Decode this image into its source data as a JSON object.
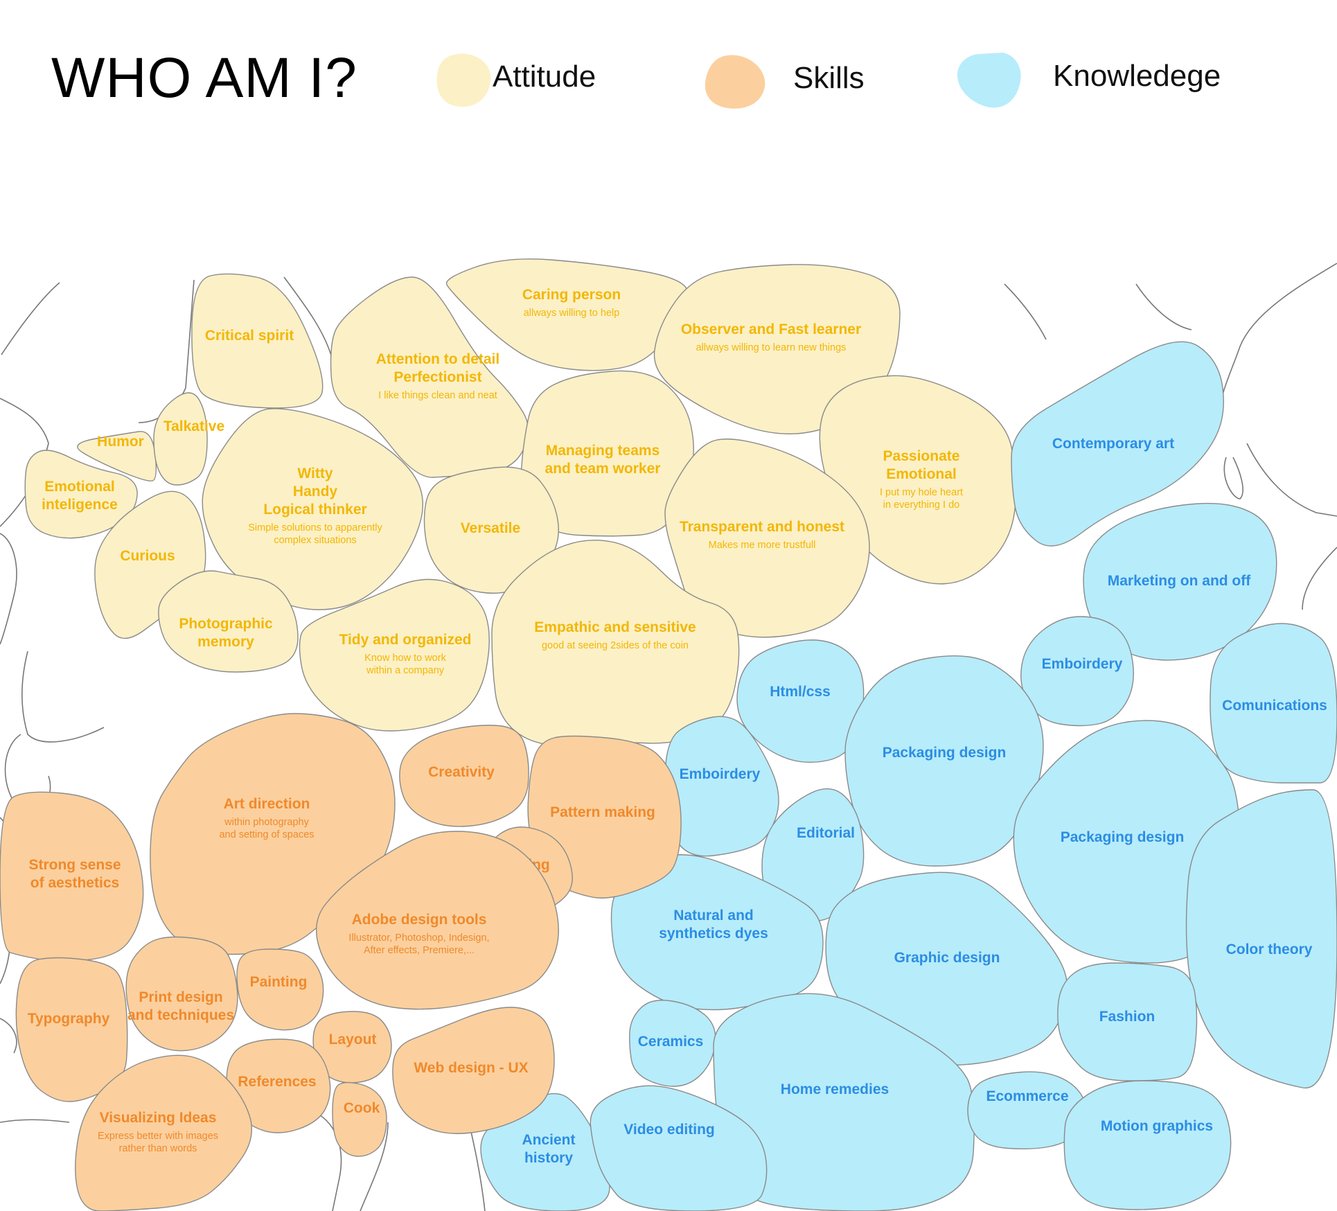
{
  "title": "WHO AM I?",
  "colors": {
    "attitude_fill": "#FCF0C6",
    "attitude_text": "#F2B705",
    "skills_fill": "#FBD09E",
    "skills_text": "#F0892C",
    "knowledge_fill": "#B7ECFB",
    "knowledge_text": "#2C8DE3"
  },
  "legend": [
    {
      "key": "attitude",
      "label": "Attitude"
    },
    {
      "key": "skills",
      "label": "Skills"
    },
    {
      "key": "knowledge",
      "label": "Knowledege"
    }
  ],
  "cells": [
    {
      "group": "attitude",
      "title": [
        "Critical spirit"
      ],
      "sub": []
    },
    {
      "group": "attitude",
      "title": [
        "Caring person"
      ],
      "sub": [
        "allways willing to help"
      ]
    },
    {
      "group": "attitude",
      "title": [
        "Observer and Fast learner"
      ],
      "sub": [
        "allways willing to learn new things"
      ]
    },
    {
      "group": "attitude",
      "title": [
        "Attention to detail",
        "Perfectionist"
      ],
      "sub": [
        "I like things clean and neat"
      ]
    },
    {
      "group": "attitude",
      "title": [
        "Humor"
      ],
      "sub": []
    },
    {
      "group": "attitude",
      "title": [
        "Talkative"
      ],
      "sub": []
    },
    {
      "group": "attitude",
      "title": [
        "Emotional",
        "inteligence"
      ],
      "sub": []
    },
    {
      "group": "attitude",
      "title": [
        "Witty",
        "Handy",
        "Logical thinker"
      ],
      "sub": [
        "Simple solutions to apparently",
        "complex situations"
      ]
    },
    {
      "group": "attitude",
      "title": [
        "Managing teams",
        "and team worker"
      ],
      "sub": []
    },
    {
      "group": "attitude",
      "title": [
        "Passionate",
        "Emotional"
      ],
      "sub": [
        "I put my hole heart",
        "in everything I do"
      ]
    },
    {
      "group": "attitude",
      "title": [
        "Curious"
      ],
      "sub": []
    },
    {
      "group": "attitude",
      "title": [
        "Versatile"
      ],
      "sub": []
    },
    {
      "group": "attitude",
      "title": [
        "Transparent and honest"
      ],
      "sub": [
        "Makes me more trustfull"
      ]
    },
    {
      "group": "attitude",
      "title": [
        "Photographic",
        "memory"
      ],
      "sub": []
    },
    {
      "group": "attitude",
      "title": [
        "Tidy and organized"
      ],
      "sub": [
        "Know how to work",
        "within a company"
      ]
    },
    {
      "group": "attitude",
      "title": [
        "Empathic and sensitive"
      ],
      "sub": [
        "good at seeing 2sides of the coin"
      ]
    },
    {
      "group": "knowledge",
      "title": [
        "Contemporary art"
      ],
      "sub": []
    },
    {
      "group": "knowledge",
      "title": [
        "Marketing on and off"
      ],
      "sub": []
    },
    {
      "group": "knowledge",
      "title": [
        "Emboirdery"
      ],
      "sub": []
    },
    {
      "group": "knowledge",
      "title": [
        "Comunications"
      ],
      "sub": []
    },
    {
      "group": "knowledge",
      "title": [
        "Html/css"
      ],
      "sub": []
    },
    {
      "group": "knowledge",
      "title": [
        "Packaging design"
      ],
      "sub": []
    },
    {
      "group": "knowledge",
      "title": [
        "Emboirdery"
      ],
      "sub": []
    },
    {
      "group": "knowledge",
      "title": [
        "Editorial"
      ],
      "sub": []
    },
    {
      "group": "knowledge",
      "title": [
        "Packaging design"
      ],
      "sub": []
    },
    {
      "group": "knowledge",
      "title": [
        "Natural and",
        "synthetics dyes"
      ],
      "sub": []
    },
    {
      "group": "knowledge",
      "title": [
        "Graphic design"
      ],
      "sub": []
    },
    {
      "group": "knowledge",
      "title": [
        "Color theory"
      ],
      "sub": []
    },
    {
      "group": "knowledge",
      "title": [
        "Fashion"
      ],
      "sub": []
    },
    {
      "group": "knowledge",
      "title": [
        "Ceramics"
      ],
      "sub": []
    },
    {
      "group": "knowledge",
      "title": [
        "Home remedies"
      ],
      "sub": []
    },
    {
      "group": "knowledge",
      "title": [
        "Ecommerce"
      ],
      "sub": []
    },
    {
      "group": "knowledge",
      "title": [
        "Ancient",
        "history"
      ],
      "sub": []
    },
    {
      "group": "knowledge",
      "title": [
        "Video editing"
      ],
      "sub": []
    },
    {
      "group": "knowledge",
      "title": [
        "Motion graphics"
      ],
      "sub": []
    },
    {
      "group": "skills",
      "title": [
        "Creativity"
      ],
      "sub": []
    },
    {
      "group": "skills",
      "title": [
        "Art direction"
      ],
      "sub": [
        "within photography",
        "and setting of spaces"
      ]
    },
    {
      "group": "skills",
      "title": [
        "Pattern making"
      ],
      "sub": []
    },
    {
      "group": "skills",
      "title": [
        "Strong sense",
        "of aesthetics"
      ],
      "sub": []
    },
    {
      "group": "skills",
      "title": [
        "Sewing"
      ],
      "sub": []
    },
    {
      "group": "skills",
      "title": [
        "Adobe design tools"
      ],
      "sub": [
        "Illustrator, Photoshop, Indesign,",
        "After effects, Premiere,..."
      ]
    },
    {
      "group": "skills",
      "title": [
        "Painting"
      ],
      "sub": []
    },
    {
      "group": "skills",
      "title": [
        "Print design",
        "and techniques"
      ],
      "sub": []
    },
    {
      "group": "skills",
      "title": [
        "Typography"
      ],
      "sub": []
    },
    {
      "group": "skills",
      "title": [
        "Layout"
      ],
      "sub": []
    },
    {
      "group": "skills",
      "title": [
        "Web design - UX"
      ],
      "sub": []
    },
    {
      "group": "skills",
      "title": [
        "References"
      ],
      "sub": []
    },
    {
      "group": "skills",
      "title": [
        "Cook"
      ],
      "sub": []
    },
    {
      "group": "skills",
      "title": [
        "Visualizing Ideas"
      ],
      "sub": [
        "Express better with images",
        "rather than words"
      ]
    }
  ]
}
